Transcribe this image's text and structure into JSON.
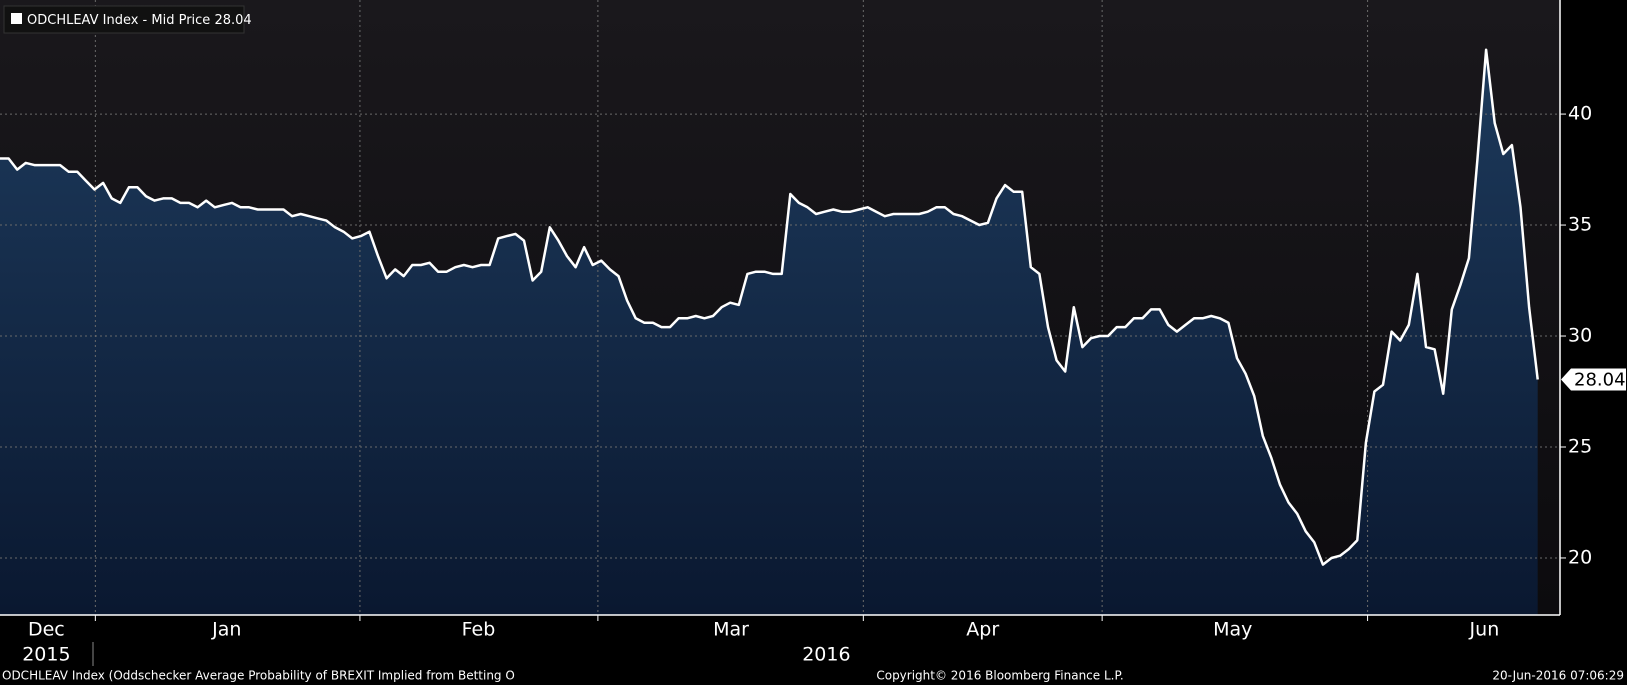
{
  "chart_data": {
    "type": "area",
    "legend_label": "ODCHLEAV Index - Mid Price",
    "footer_left": "ODCHLEAV Index (Oddschecker Average Probability of BREXIT Implied from Betting O",
    "footer_center": "Copyright© 2016 Bloomberg Finance L.P.",
    "footer_right": "20-Jun-2016 07:06:29",
    "series": [
      {
        "name": "ODCHLEAV Index - Mid Price",
        "color": "#ffffff",
        "values": [
          38.0,
          38.0,
          37.5,
          37.8,
          37.7,
          37.7,
          37.7,
          37.7,
          37.4,
          37.4,
          37.0,
          36.6,
          36.9,
          36.2,
          36.0,
          36.7,
          36.7,
          36.3,
          36.1,
          36.2,
          36.2,
          36.0,
          36.0,
          35.8,
          36.1,
          35.8,
          35.9,
          36.0,
          35.8,
          35.8,
          35.7,
          35.7,
          35.7,
          35.7,
          35.4,
          35.5,
          35.4,
          35.3,
          35.2,
          34.9,
          34.7,
          34.4,
          34.5,
          34.7,
          33.6,
          32.6,
          33.0,
          32.7,
          33.2,
          33.2,
          33.3,
          32.9,
          32.9,
          33.1,
          33.2,
          33.1,
          33.2,
          33.2,
          34.4,
          34.5,
          34.6,
          34.3,
          32.5,
          32.9,
          34.9,
          34.3,
          33.6,
          33.1,
          34.0,
          33.2,
          33.4,
          33.0,
          32.7,
          31.6,
          30.8,
          30.6,
          30.6,
          30.4,
          30.4,
          30.8,
          30.8,
          30.9,
          30.8,
          30.9,
          31.3,
          31.5,
          31.4,
          32.8,
          32.9,
          32.9,
          32.8,
          32.8,
          36.4,
          36.0,
          35.8,
          35.5,
          35.6,
          35.7,
          35.6,
          35.6,
          35.7,
          35.8,
          35.6,
          35.4,
          35.5,
          35.5,
          35.5,
          35.5,
          35.6,
          35.8,
          35.8,
          35.5,
          35.4,
          35.2,
          35.0,
          35.1,
          36.2,
          36.8,
          36.5,
          36.5,
          33.1,
          32.8,
          30.4,
          28.9,
          28.4,
          31.3,
          29.5,
          29.9,
          30.0,
          30.0,
          30.4,
          30.4,
          30.8,
          30.8,
          31.2,
          31.2,
          30.5,
          30.2,
          30.5,
          30.8,
          30.8,
          30.9,
          30.8,
          30.6,
          29.0,
          28.3,
          27.3,
          25.5,
          24.5,
          23.3,
          22.5,
          22.0,
          21.2,
          20.7,
          19.7,
          20.0,
          20.1,
          20.4,
          20.8,
          25.2,
          27.5,
          27.8,
          30.2,
          29.8,
          30.5,
          32.8,
          29.5,
          29.4,
          27.4,
          31.2,
          32.3,
          33.5,
          38.0,
          42.9,
          39.6,
          38.2,
          38.6,
          35.8,
          31.3,
          28.04
        ]
      }
    ],
    "xlim": [
      0,
      181.6
    ],
    "xticks": [
      11.1,
      41.9,
      69.6,
      100.5,
      128.3,
      159.2
    ],
    "month_labels": [
      {
        "value": 5.4,
        "label": "Dec"
      },
      {
        "value": 26.4,
        "label": "Jan"
      },
      {
        "value": 55.7,
        "label": "Feb"
      },
      {
        "value": 85.1,
        "label": "Mar"
      },
      {
        "value": 114.4,
        "label": "Apr"
      },
      {
        "value": 143.5,
        "label": "May"
      },
      {
        "value": 172.8,
        "label": "Jun"
      }
    ],
    "year_labels": [
      {
        "value": 5.4,
        "label": "2015"
      },
      {
        "value": 96.2,
        "label": "2016"
      }
    ],
    "ylim": [
      17.43,
      45.14
    ],
    "yticks": [
      20,
      25,
      30,
      35,
      40
    ],
    "grid": true
  }
}
